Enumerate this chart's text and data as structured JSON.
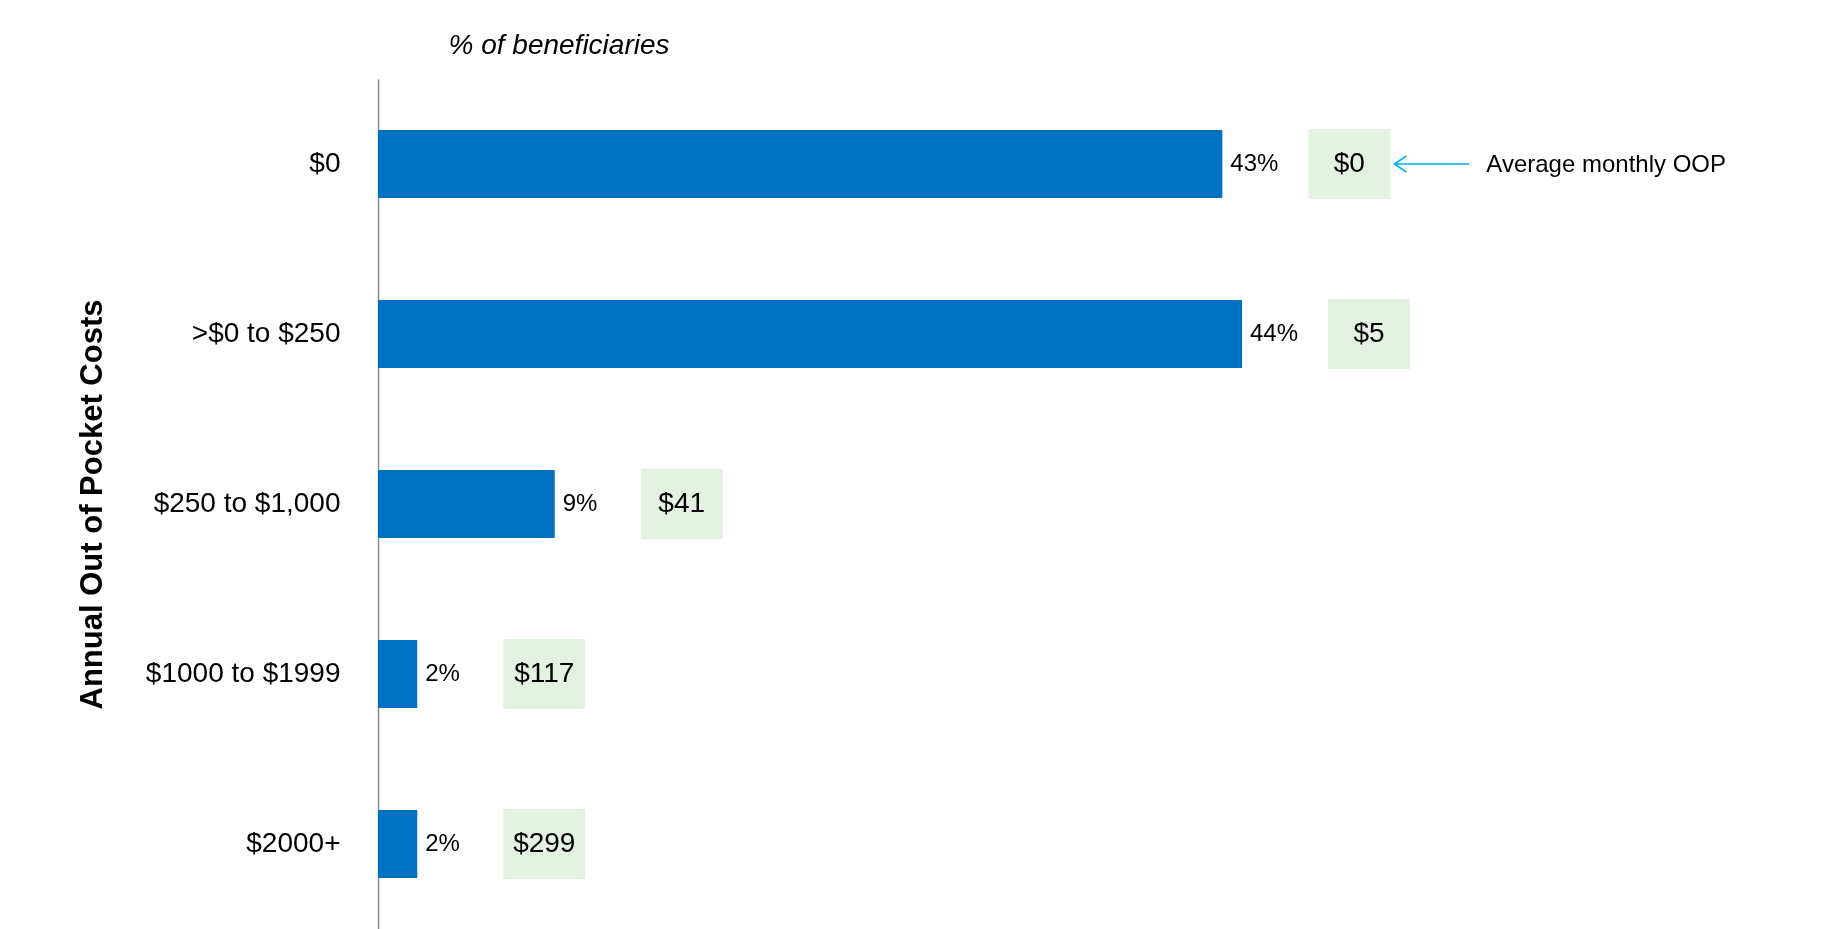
{
  "chart_data": {
    "type": "bar",
    "orientation": "horizontal",
    "xlabel": "% of beneficiaries",
    "ylabel": "Annual Out of Pocket Costs",
    "categories": [
      "$0 ",
      ">$0 to $250",
      "$250 to $1,000",
      "$1000 to $1999",
      "$2000+"
    ],
    "values": [
      43,
      44,
      9,
      2,
      2
    ],
    "value_labels": [
      "43%",
      "44%",
      "9%",
      "2%",
      "2%"
    ],
    "color": "#0070c0",
    "annotations": [
      "$0",
      "$5",
      "$41",
      "$117",
      "$299",
      "Average monthly OOP"
    ]
  }
}
